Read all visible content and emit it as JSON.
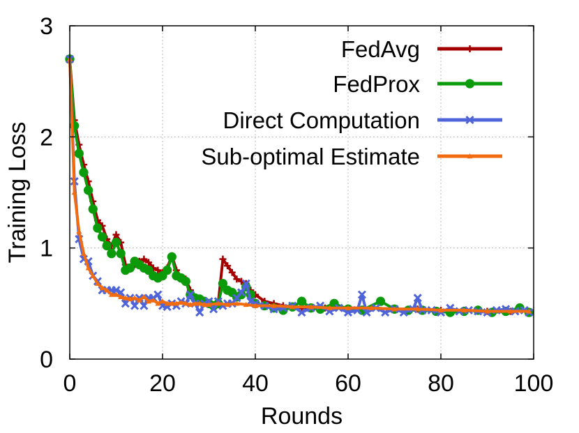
{
  "chart_data": {
    "type": "line",
    "xlabel": "Rounds",
    "ylabel": "Training Loss",
    "xlim": [
      0,
      100
    ],
    "ylim": [
      0,
      3
    ],
    "xticks": [
      "0",
      "20",
      "40",
      "60",
      "80",
      "100"
    ],
    "yticks": [
      "0",
      "1",
      "2",
      "3"
    ],
    "grid": true,
    "legend_position": "top-right",
    "series": [
      {
        "name": "FedAvg",
        "color": "#a40000",
        "marker": "plus",
        "x": [
          0,
          1,
          2,
          3,
          4,
          5,
          6,
          7,
          8,
          9,
          10,
          11,
          12,
          13,
          14,
          15,
          16,
          17,
          18,
          19,
          20,
          21,
          22,
          23,
          24,
          25,
          26,
          27,
          28,
          29,
          30,
          31,
          32,
          33,
          34,
          35,
          36,
          37,
          38,
          39,
          40,
          42,
          44,
          46,
          48,
          50,
          55,
          60,
          65,
          70,
          75,
          80,
          85,
          90,
          95,
          99
        ],
        "y": [
          2.7,
          2.15,
          1.93,
          1.75,
          1.6,
          1.42,
          1.25,
          1.2,
          1.08,
          1.02,
          1.12,
          1.05,
          0.85,
          0.82,
          0.85,
          0.88,
          0.9,
          0.87,
          0.82,
          0.8,
          0.78,
          0.82,
          0.93,
          0.8,
          0.74,
          0.72,
          0.62,
          0.55,
          0.52,
          0.5,
          0.5,
          0.48,
          0.5,
          0.9,
          0.84,
          0.78,
          0.72,
          0.7,
          0.68,
          0.62,
          0.58,
          0.52,
          0.5,
          0.48,
          0.47,
          0.46,
          0.46,
          0.46,
          0.46,
          0.45,
          0.45,
          0.44,
          0.44,
          0.43,
          0.43,
          0.43
        ]
      },
      {
        "name": "FedProx",
        "color": "#0a9a0a",
        "marker": "circle",
        "x": [
          0,
          1,
          2,
          3,
          4,
          5,
          6,
          7,
          8,
          9,
          10,
          11,
          12,
          13,
          14,
          15,
          16,
          17,
          18,
          19,
          20,
          21,
          22,
          23,
          24,
          25,
          26,
          27,
          28,
          29,
          30,
          31,
          32,
          33,
          34,
          35,
          36,
          37,
          38,
          39,
          40,
          42,
          44,
          46,
          48,
          50,
          52,
          54,
          57,
          60,
          63,
          67,
          70,
          73,
          76,
          79,
          82,
          85,
          88,
          91,
          94,
          97,
          99
        ],
        "y": [
          2.7,
          2.1,
          1.85,
          1.68,
          1.52,
          1.35,
          1.18,
          1.1,
          1.02,
          0.95,
          1.05,
          0.95,
          0.8,
          0.82,
          0.88,
          0.85,
          0.82,
          0.8,
          0.75,
          0.73,
          0.75,
          0.8,
          0.92,
          0.75,
          0.73,
          0.7,
          0.58,
          0.55,
          0.54,
          0.52,
          0.5,
          0.48,
          0.5,
          0.68,
          0.62,
          0.6,
          0.56,
          0.58,
          0.65,
          0.58,
          0.5,
          0.48,
          0.46,
          0.44,
          0.47,
          0.52,
          0.46,
          0.45,
          0.5,
          0.45,
          0.44,
          0.52,
          0.45,
          0.44,
          0.44,
          0.43,
          0.42,
          0.43,
          0.44,
          0.42,
          0.43,
          0.46,
          0.42
        ]
      },
      {
        "name": "Direct Computation",
        "color": "#4f64d9",
        "marker": "cross",
        "x": [
          0,
          1,
          2,
          3,
          4,
          5,
          6,
          7,
          8,
          9,
          10,
          11,
          12,
          13,
          14,
          15,
          16,
          17,
          18,
          19,
          20,
          21,
          22,
          23,
          24,
          25,
          26,
          27,
          28,
          29,
          30,
          31,
          32,
          33,
          34,
          35,
          36,
          37,
          38,
          39,
          40,
          42,
          44,
          46,
          48,
          50,
          52,
          54,
          56,
          58,
          60,
          62,
          63,
          64,
          66,
          68,
          70,
          72,
          74,
          75,
          76,
          78,
          80,
          82,
          84,
          86,
          88,
          90,
          92,
          94,
          96,
          98,
          99
        ],
        "y": [
          2.7,
          1.6,
          1.08,
          0.9,
          0.88,
          0.75,
          0.7,
          0.62,
          0.62,
          0.62,
          0.62,
          0.6,
          0.5,
          0.55,
          0.48,
          0.55,
          0.48,
          0.55,
          0.55,
          0.58,
          0.48,
          0.47,
          0.5,
          0.48,
          0.52,
          0.5,
          0.58,
          0.5,
          0.42,
          0.5,
          0.52,
          0.45,
          0.52,
          0.48,
          0.5,
          0.5,
          0.55,
          0.6,
          0.68,
          0.52,
          0.5,
          0.48,
          0.45,
          0.46,
          0.48,
          0.42,
          0.46,
          0.48,
          0.43,
          0.46,
          0.42,
          0.44,
          0.58,
          0.42,
          0.46,
          0.42,
          0.45,
          0.42,
          0.45,
          0.55,
          0.44,
          0.44,
          0.42,
          0.46,
          0.43,
          0.44,
          0.43,
          0.42,
          0.44,
          0.45,
          0.43,
          0.44,
          0.42
        ]
      },
      {
        "name": "Sub-optimal Estimate",
        "color": "#f26b0f",
        "marker": "triangle",
        "x": [
          0,
          1,
          2,
          3,
          4,
          5,
          6,
          7,
          8,
          9,
          10,
          11,
          12,
          13,
          14,
          15,
          16,
          17,
          18,
          19,
          20,
          21,
          22,
          23,
          24,
          25,
          26,
          27,
          28,
          29,
          30,
          32,
          34,
          36,
          38,
          40,
          44,
          48,
          52,
          56,
          60,
          65,
          70,
          75,
          80,
          85,
          90,
          95,
          99
        ],
        "y": [
          2.7,
          1.5,
          1.15,
          0.95,
          0.82,
          0.75,
          0.68,
          0.64,
          0.62,
          0.58,
          0.58,
          0.56,
          0.55,
          0.54,
          0.55,
          0.53,
          0.56,
          0.52,
          0.53,
          0.5,
          0.52,
          0.5,
          0.5,
          0.5,
          0.51,
          0.5,
          0.49,
          0.5,
          0.5,
          0.49,
          0.49,
          0.5,
          0.49,
          0.5,
          0.49,
          0.48,
          0.48,
          0.47,
          0.47,
          0.46,
          0.46,
          0.46,
          0.45,
          0.45,
          0.44,
          0.44,
          0.43,
          0.43,
          0.43
        ]
      }
    ]
  }
}
